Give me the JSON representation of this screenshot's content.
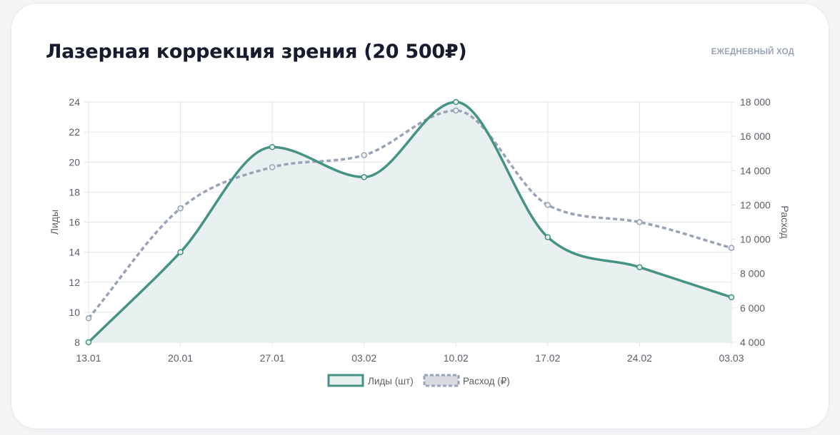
{
  "header": {
    "title": "Лазерная коррекция зрения (20 500₽)",
    "badge": "ЕЖЕДНЕВНЫЙ ХОД"
  },
  "colors": {
    "leads": "#449385",
    "leads_fill": "#e8f1ef",
    "spend": "#99a3b7",
    "grid": "#e3e5e8",
    "axis_text": "#5a5f68"
  },
  "chart_data": {
    "type": "line",
    "categories": [
      "13.01",
      "20.01",
      "27.01",
      "03.02",
      "10.02",
      "17.02",
      "24.02",
      "03.03"
    ],
    "series": [
      {
        "name": "Лиды (шт)",
        "axis": "left",
        "style": "solid-filled",
        "values": [
          8,
          14,
          21,
          19,
          24,
          15,
          13,
          11
        ]
      },
      {
        "name": "Расход (₽)",
        "axis": "right",
        "style": "dashed",
        "values": [
          5400,
          11800,
          14200,
          14900,
          17500,
          12000,
          11000,
          9500
        ]
      }
    ],
    "y_left": {
      "label": "Лиды",
      "min": 8,
      "max": 24,
      "ticks": [
        "8",
        "10",
        "12",
        "14",
        "16",
        "18",
        "20",
        "22",
        "24"
      ]
    },
    "y_right": {
      "label": "Расход",
      "min": 4000,
      "max": 18000,
      "ticks": [
        "4 000",
        "6 000",
        "8 000",
        "10 000",
        "12 000",
        "14 000",
        "16 000",
        "18 000"
      ]
    },
    "grid": true,
    "legend_position": "bottom"
  }
}
